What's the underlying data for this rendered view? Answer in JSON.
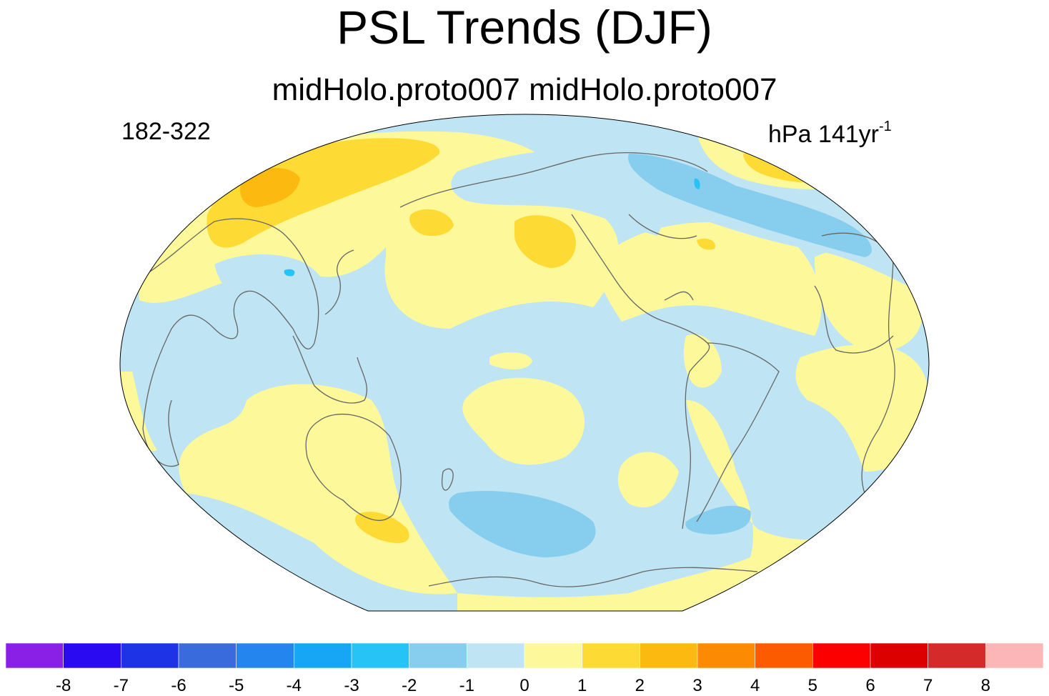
{
  "title": "PSL Trends (DJF)",
  "subtitle": "midHolo.proto007  midHolo.proto007",
  "left_label": "182-322",
  "right_label": {
    "units": "hPa 141yr",
    "superscript": "-1"
  },
  "colorbar": {
    "tick_labels": [
      "-8",
      "-7",
      "-6",
      "-5",
      "-4",
      "-3",
      "-2",
      "-1",
      "0",
      "1",
      "2",
      "3",
      "4",
      "5",
      "6",
      "7",
      "8"
    ],
    "colors": [
      "#8a1fe6",
      "#2a0af0",
      "#1e32e6",
      "#3a6bdc",
      "#2585ee",
      "#17a6f5",
      "#27c3f7",
      "#87cdee",
      "#bfe4f4",
      "#fdf89a",
      "#fddb34",
      "#fcb910",
      "#fd8a03",
      "#fd5b00",
      "#fc0000",
      "#dc0000",
      "#d42a2a",
      "#fcb6b8"
    ]
  },
  "map": {
    "projection": "Robinson-like, Pacific-centered",
    "ocean_background_color": "#bfe4f4",
    "coastline_color": "#666666"
  }
}
